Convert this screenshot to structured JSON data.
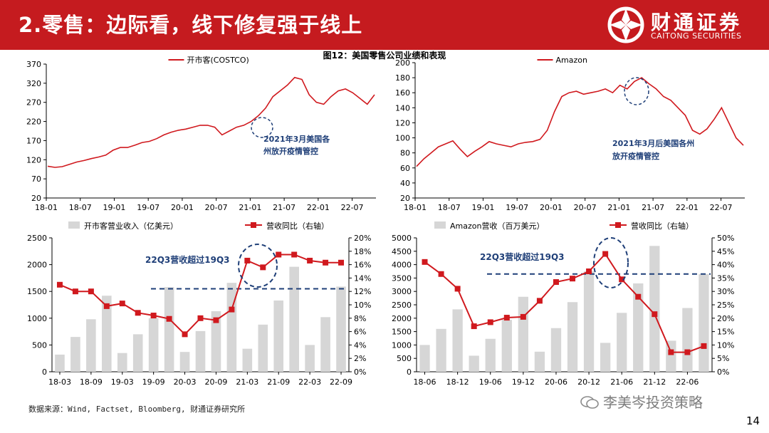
{
  "header": {
    "title": "2.零售：边际看，线下修复强于线上",
    "logo_cn": "财通证券",
    "logo_en": "CAITONG SECURITIES"
  },
  "figure_title": "图12：美国零售公司业绩和表现",
  "source": "数据来源：Wind, Factset, Bloomberg, 财通证券研究所",
  "page_number": "14",
  "watermark": "李美岑投资策略",
  "colors": {
    "red": "#c51b1f",
    "line": "#d0191e",
    "bar": "#d6d6d6",
    "dash": "#1f3f78",
    "annot": "#1f3f78"
  },
  "chart_data": [
    {
      "type": "line",
      "legend": [
        "开市客(COSTCO)"
      ],
      "xticks": [
        "18-01",
        "18-07",
        "19-01",
        "19-07",
        "20-01",
        "20-07",
        "21-01",
        "21-07",
        "22-01",
        "22-07"
      ],
      "ylim": [
        20,
        370
      ],
      "yticks": [
        20,
        70,
        120,
        170,
        220,
        270,
        320,
        370
      ],
      "series": [
        {
          "name": "开市客(COSTCO)",
          "values": [
            103,
            100,
            102,
            108,
            114,
            118,
            123,
            127,
            132,
            145,
            152,
            152,
            158,
            165,
            168,
            175,
            185,
            192,
            197,
            200,
            205,
            210,
            210,
            205,
            185,
            195,
            205,
            210,
            220,
            235,
            255,
            285,
            300,
            315,
            335,
            330,
            290,
            270,
            265,
            285,
            300,
            305,
            295,
            280,
            265,
            290
          ]
        }
      ],
      "annotation": {
        "text1": "2021年3月美国各",
        "text2": "州放开疫情管控",
        "x": "21-03"
      }
    },
    {
      "type": "line",
      "legend": [
        "Amazon"
      ],
      "xticks": [
        "18-01",
        "18-07",
        "19-01",
        "19-07",
        "20-01",
        "20-07",
        "21-01",
        "21-07",
        "22-01",
        "22-07"
      ],
      "ylim": [
        20,
        200
      ],
      "yticks": [
        20,
        40,
        60,
        80,
        100,
        120,
        140,
        160,
        180,
        200
      ],
      "series": [
        {
          "name": "Amazon",
          "values": [
            62,
            72,
            80,
            88,
            92,
            96,
            85,
            75,
            82,
            88,
            95,
            92,
            90,
            88,
            92,
            94,
            95,
            98,
            110,
            135,
            155,
            160,
            162,
            158,
            160,
            162,
            165,
            160,
            170,
            165,
            175,
            180,
            172,
            165,
            155,
            150,
            140,
            130,
            110,
            105,
            112,
            125,
            140,
            120,
            100,
            90
          ]
        }
      ],
      "annotation": {
        "text1": "2021年3月后美国各州",
        "text2": "放开疫情管控",
        "x": "21-03"
      }
    },
    {
      "type": "bar",
      "legend": [
        "开市客营业收入（亿美元）",
        "营收同比（右轴）"
      ],
      "xticks": [
        "18-03",
        "18-09",
        "19-03",
        "19-09",
        "20-03",
        "20-09",
        "21-03",
        "21-09",
        "22-03",
        "22-09"
      ],
      "ylim": [
        0,
        2500
      ],
      "yticks": [
        0,
        500,
        1000,
        1500,
        2000,
        2500
      ],
      "y2lim": [
        0,
        20
      ],
      "y2ticks": [
        "0%",
        "2%",
        "4%",
        "6%",
        "8%",
        "10%",
        "12%",
        "14%",
        "16%",
        "18%",
        "20%"
      ],
      "series": [
        {
          "name": "开市客营业收入（亿美元）",
          "values": [
            320,
            650,
            980,
            1420,
            350,
            700,
            1000,
            1580,
            370,
            760,
            1130,
            1660,
            430,
            880,
            1330,
            1960,
            500,
            1020,
            1590
          ]
        },
        {
          "name": "营收同比（右轴）",
          "values": [
            13.0,
            12.0,
            12.0,
            9.8,
            10.2,
            8.8,
            8.4,
            7.9,
            5.6,
            8.0,
            7.7,
            9.3,
            16.6,
            15.6,
            17.5,
            17.5,
            16.6,
            16.3,
            16.3
          ]
        }
      ],
      "dash_level": 1550,
      "annotation": {
        "text": "22Q3营收超过19Q3"
      }
    },
    {
      "type": "bar",
      "legend": [
        "Amazon营收（百万美元）",
        "营收同比（右轴）"
      ],
      "xticks": [
        "18-06",
        "18-12",
        "19-06",
        "19-12",
        "20-06",
        "20-12",
        "21-06",
        "21-12",
        "22-06"
      ],
      "ylim": [
        0,
        5000
      ],
      "yticks": [
        0,
        500,
        1000,
        1500,
        2000,
        2500,
        3000,
        3500,
        4000,
        4500,
        5000
      ],
      "y2lim": [
        0,
        50
      ],
      "y2ticks": [
        "0%",
        "5%",
        "10%",
        "15%",
        "20%",
        "25%",
        "30%",
        "35%",
        "40%",
        "45%",
        "50%"
      ],
      "series": [
        {
          "name": "Amazon营收（百万美元）",
          "values": [
            1000,
            1600,
            2330,
            600,
            1230,
            1940,
            2800,
            750,
            1630,
            2600,
            3750,
            1080,
            2200,
            3300,
            4700,
            1160,
            2380,
            3650
          ]
        },
        {
          "name": "营收同比（右轴）",
          "values": [
            41,
            36.5,
            31,
            17,
            18.5,
            20.2,
            20.5,
            26.5,
            33.5,
            34.8,
            37.5,
            44,
            34.5,
            28,
            21.5,
            7.3,
            7.3,
            9.6
          ]
        }
      ],
      "dash_level": 3650,
      "annotation": {
        "text": "22Q3营收超过19Q3"
      }
    }
  ]
}
